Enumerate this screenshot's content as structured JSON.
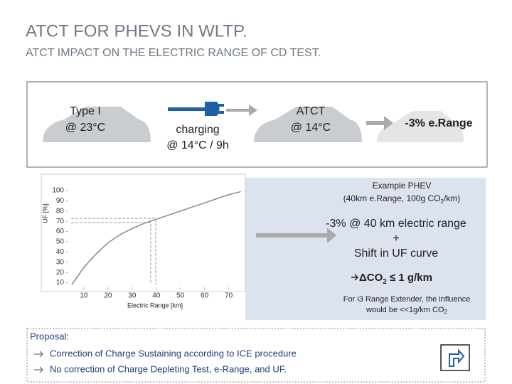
{
  "header": {
    "title": "ATCT FOR PHEVS IN WLTP.",
    "subtitle": "ATCT IMPACT ON THE ELECTRIC RANGE OF CD TEST."
  },
  "process": {
    "type1": [
      "Type I",
      "@ 23°C"
    ],
    "charging": [
      "charging",
      "@ 14°C / 9h"
    ],
    "atct": [
      "ATCT",
      "@ 14°C"
    ],
    "result": "-3% e.Range"
  },
  "example": {
    "heading": "Example PHEV",
    "detail": [
      "(40km e.Range, 100g CO",
      "2",
      "/km)"
    ],
    "effect": [
      "-3% @ 40 km electric range",
      "+",
      "Shift in UF curve"
    ],
    "conclusion": [
      "ΔCO",
      "2",
      " ≤ 1 g/km"
    ],
    "note": [
      "For i3 Range Extender, the influence",
      "would be <<1g/km CO",
      "2"
    ]
  },
  "proposal": {
    "heading": "Proposal:",
    "items": [
      "Correction of Charge Sustaining according to ICE procedure",
      "No correction of Charge Depleting Test, e-Range, and UF."
    ]
  },
  "chart_data": {
    "type": "line",
    "x_label": "Electric Range [km]",
    "y_label": "UF [%]",
    "x": [
      5,
      10,
      15,
      20,
      25,
      30,
      35,
      40,
      45,
      50,
      55,
      60,
      65,
      70,
      75
    ],
    "series": [
      {
        "color": "#888888",
        "values": [
          8,
          25,
          38,
          49,
          57,
          63,
          68,
          72,
          76,
          80,
          84,
          88,
          92,
          96,
          99
        ]
      }
    ],
    "xlim": [
      0,
      76
    ],
    "ylim": [
      0,
      100
    ],
    "xticks": [
      10,
      20,
      30,
      40,
      50,
      60,
      70
    ],
    "yticks": [
      10,
      20,
      30,
      40,
      50,
      60,
      70,
      80,
      90,
      100
    ],
    "grid": false
  }
}
